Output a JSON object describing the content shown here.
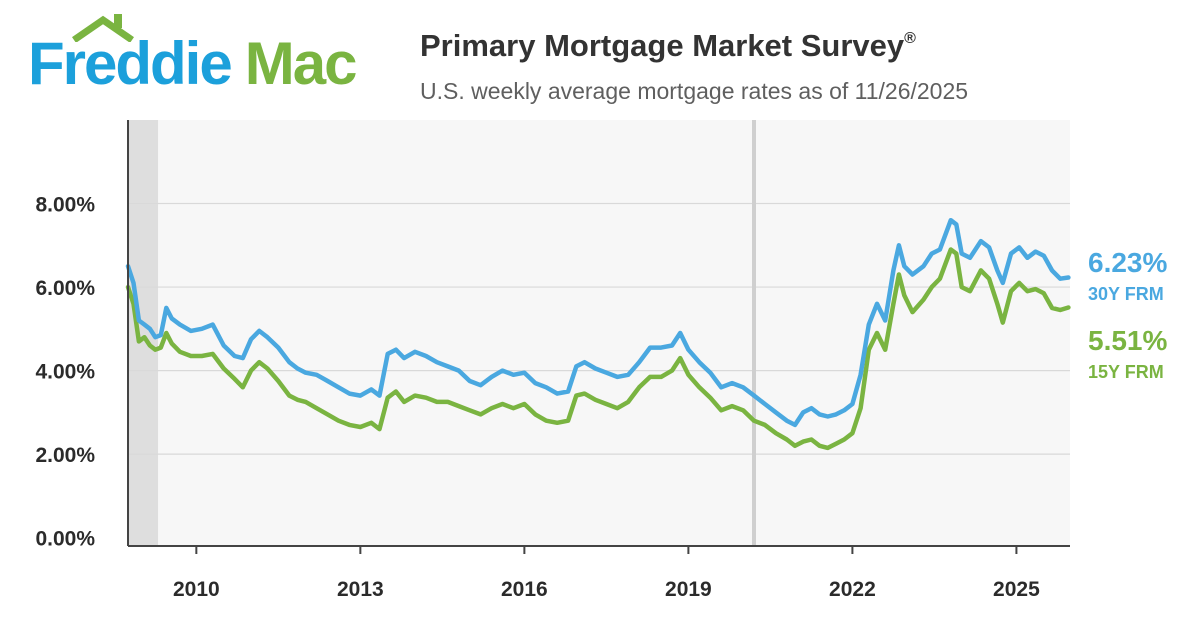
{
  "brand": {
    "name_part1": "Freddie",
    "name_part2": "Mac",
    "blue": "#1ca0db",
    "green": "#7ab441"
  },
  "header": {
    "title": "Primary Mortgage Market Survey",
    "title_mark": "®",
    "subtitle": "U.S. weekly average mortgage rates as of 11/26/2025"
  },
  "chart_data": {
    "type": "line",
    "title": "Primary Mortgage Market Survey®",
    "subtitle": "U.S. weekly average mortgage rates as of 11/26/2025",
    "xlim": [
      2008.75,
      2025.98
    ],
    "ylim": [
      -0.2,
      10.0
    ],
    "x_ticks": [
      2010,
      2013,
      2016,
      2019,
      2022,
      2025
    ],
    "x_tick_labels": [
      "2010",
      "2013",
      "2016",
      "2019",
      "2022",
      "2025"
    ],
    "y_ticks": [
      0,
      2,
      4,
      6,
      8
    ],
    "y_tick_labels": [
      "0.00%",
      "2.00%",
      "4.00%",
      "6.00%",
      "8.00%"
    ],
    "grid": "horizontal",
    "shaded_recession": [
      2008.75,
      2009.3
    ],
    "reference_line_x": 2020.2,
    "series": [
      {
        "name": "30Y FRM",
        "color": "#4aa8e0",
        "last_value": "6.23%",
        "points": [
          [
            2008.75,
            6.5
          ],
          [
            2008.85,
            6.1
          ],
          [
            2008.95,
            5.2
          ],
          [
            2009.05,
            5.1
          ],
          [
            2009.15,
            5.0
          ],
          [
            2009.25,
            4.8
          ],
          [
            2009.35,
            4.85
          ],
          [
            2009.45,
            5.5
          ],
          [
            2009.55,
            5.25
          ],
          [
            2009.7,
            5.1
          ],
          [
            2009.9,
            4.95
          ],
          [
            2010.1,
            5.0
          ],
          [
            2010.3,
            5.1
          ],
          [
            2010.5,
            4.6
          ],
          [
            2010.7,
            4.35
          ],
          [
            2010.85,
            4.3
          ],
          [
            2011.0,
            4.75
          ],
          [
            2011.15,
            4.95
          ],
          [
            2011.3,
            4.8
          ],
          [
            2011.5,
            4.55
          ],
          [
            2011.7,
            4.2
          ],
          [
            2011.85,
            4.05
          ],
          [
            2012.0,
            3.95
          ],
          [
            2012.2,
            3.9
          ],
          [
            2012.4,
            3.75
          ],
          [
            2012.6,
            3.6
          ],
          [
            2012.8,
            3.45
          ],
          [
            2013.0,
            3.4
          ],
          [
            2013.2,
            3.55
          ],
          [
            2013.35,
            3.4
          ],
          [
            2013.5,
            4.4
          ],
          [
            2013.65,
            4.5
          ],
          [
            2013.8,
            4.3
          ],
          [
            2014.0,
            4.45
          ],
          [
            2014.2,
            4.35
          ],
          [
            2014.4,
            4.2
          ],
          [
            2014.6,
            4.1
          ],
          [
            2014.8,
            4.0
          ],
          [
            2015.0,
            3.75
          ],
          [
            2015.2,
            3.65
          ],
          [
            2015.4,
            3.85
          ],
          [
            2015.6,
            4.0
          ],
          [
            2015.8,
            3.9
          ],
          [
            2016.0,
            3.95
          ],
          [
            2016.2,
            3.7
          ],
          [
            2016.4,
            3.6
          ],
          [
            2016.6,
            3.45
          ],
          [
            2016.8,
            3.5
          ],
          [
            2016.95,
            4.1
          ],
          [
            2017.1,
            4.2
          ],
          [
            2017.3,
            4.05
          ],
          [
            2017.5,
            3.95
          ],
          [
            2017.7,
            3.85
          ],
          [
            2017.9,
            3.9
          ],
          [
            2018.1,
            4.2
          ],
          [
            2018.3,
            4.55
          ],
          [
            2018.5,
            4.55
          ],
          [
            2018.7,
            4.6
          ],
          [
            2018.85,
            4.9
          ],
          [
            2019.0,
            4.5
          ],
          [
            2019.2,
            4.2
          ],
          [
            2019.4,
            3.95
          ],
          [
            2019.6,
            3.6
          ],
          [
            2019.8,
            3.7
          ],
          [
            2020.0,
            3.6
          ],
          [
            2020.2,
            3.4
          ],
          [
            2020.4,
            3.2
          ],
          [
            2020.6,
            3.0
          ],
          [
            2020.8,
            2.8
          ],
          [
            2020.95,
            2.7
          ],
          [
            2021.1,
            3.0
          ],
          [
            2021.25,
            3.1
          ],
          [
            2021.4,
            2.95
          ],
          [
            2021.55,
            2.9
          ],
          [
            2021.7,
            2.95
          ],
          [
            2021.85,
            3.05
          ],
          [
            2022.0,
            3.2
          ],
          [
            2022.15,
            3.9
          ],
          [
            2022.3,
            5.1
          ],
          [
            2022.45,
            5.6
          ],
          [
            2022.6,
            5.2
          ],
          [
            2022.75,
            6.4
          ],
          [
            2022.85,
            7.0
          ],
          [
            2022.95,
            6.5
          ],
          [
            2023.1,
            6.3
          ],
          [
            2023.3,
            6.5
          ],
          [
            2023.45,
            6.8
          ],
          [
            2023.6,
            6.9
          ],
          [
            2023.8,
            7.6
          ],
          [
            2023.9,
            7.5
          ],
          [
            2024.0,
            6.8
          ],
          [
            2024.15,
            6.7
          ],
          [
            2024.35,
            7.1
          ],
          [
            2024.5,
            6.95
          ],
          [
            2024.65,
            6.4
          ],
          [
            2024.75,
            6.1
          ],
          [
            2024.9,
            6.8
          ],
          [
            2025.05,
            6.95
          ],
          [
            2025.2,
            6.7
          ],
          [
            2025.35,
            6.85
          ],
          [
            2025.5,
            6.75
          ],
          [
            2025.65,
            6.4
          ],
          [
            2025.8,
            6.2
          ],
          [
            2025.95,
            6.23
          ]
        ]
      },
      {
        "name": "15Y FRM",
        "color": "#7ab441",
        "last_value": "5.51%",
        "points": [
          [
            2008.75,
            6.0
          ],
          [
            2008.85,
            5.6
          ],
          [
            2008.95,
            4.7
          ],
          [
            2009.05,
            4.8
          ],
          [
            2009.15,
            4.6
          ],
          [
            2009.25,
            4.5
          ],
          [
            2009.35,
            4.55
          ],
          [
            2009.45,
            4.9
          ],
          [
            2009.55,
            4.65
          ],
          [
            2009.7,
            4.45
          ],
          [
            2009.9,
            4.35
          ],
          [
            2010.1,
            4.35
          ],
          [
            2010.3,
            4.4
          ],
          [
            2010.5,
            4.05
          ],
          [
            2010.7,
            3.8
          ],
          [
            2010.85,
            3.6
          ],
          [
            2011.0,
            4.0
          ],
          [
            2011.15,
            4.2
          ],
          [
            2011.3,
            4.05
          ],
          [
            2011.5,
            3.75
          ],
          [
            2011.7,
            3.4
          ],
          [
            2011.85,
            3.3
          ],
          [
            2012.0,
            3.25
          ],
          [
            2012.2,
            3.1
          ],
          [
            2012.4,
            2.95
          ],
          [
            2012.6,
            2.8
          ],
          [
            2012.8,
            2.7
          ],
          [
            2013.0,
            2.65
          ],
          [
            2013.2,
            2.75
          ],
          [
            2013.35,
            2.6
          ],
          [
            2013.5,
            3.35
          ],
          [
            2013.65,
            3.5
          ],
          [
            2013.8,
            3.25
          ],
          [
            2014.0,
            3.4
          ],
          [
            2014.2,
            3.35
          ],
          [
            2014.4,
            3.25
          ],
          [
            2014.6,
            3.25
          ],
          [
            2014.8,
            3.15
          ],
          [
            2015.0,
            3.05
          ],
          [
            2015.2,
            2.95
          ],
          [
            2015.4,
            3.1
          ],
          [
            2015.6,
            3.2
          ],
          [
            2015.8,
            3.1
          ],
          [
            2016.0,
            3.2
          ],
          [
            2016.2,
            2.95
          ],
          [
            2016.4,
            2.8
          ],
          [
            2016.6,
            2.75
          ],
          [
            2016.8,
            2.8
          ],
          [
            2016.95,
            3.4
          ],
          [
            2017.1,
            3.45
          ],
          [
            2017.3,
            3.3
          ],
          [
            2017.5,
            3.2
          ],
          [
            2017.7,
            3.1
          ],
          [
            2017.9,
            3.25
          ],
          [
            2018.1,
            3.6
          ],
          [
            2018.3,
            3.85
          ],
          [
            2018.5,
            3.85
          ],
          [
            2018.7,
            4.0
          ],
          [
            2018.85,
            4.3
          ],
          [
            2019.0,
            3.9
          ],
          [
            2019.2,
            3.6
          ],
          [
            2019.4,
            3.35
          ],
          [
            2019.6,
            3.05
          ],
          [
            2019.8,
            3.15
          ],
          [
            2020.0,
            3.05
          ],
          [
            2020.2,
            2.8
          ],
          [
            2020.4,
            2.7
          ],
          [
            2020.6,
            2.5
          ],
          [
            2020.8,
            2.35
          ],
          [
            2020.95,
            2.2
          ],
          [
            2021.1,
            2.3
          ],
          [
            2021.25,
            2.35
          ],
          [
            2021.4,
            2.2
          ],
          [
            2021.55,
            2.15
          ],
          [
            2021.7,
            2.25
          ],
          [
            2021.85,
            2.35
          ],
          [
            2022.0,
            2.5
          ],
          [
            2022.15,
            3.1
          ],
          [
            2022.3,
            4.5
          ],
          [
            2022.45,
            4.9
          ],
          [
            2022.6,
            4.5
          ],
          [
            2022.75,
            5.6
          ],
          [
            2022.85,
            6.3
          ],
          [
            2022.95,
            5.8
          ],
          [
            2023.1,
            5.4
          ],
          [
            2023.3,
            5.7
          ],
          [
            2023.45,
            6.0
          ],
          [
            2023.6,
            6.2
          ],
          [
            2023.8,
            6.9
          ],
          [
            2023.9,
            6.8
          ],
          [
            2024.0,
            6.0
          ],
          [
            2024.15,
            5.9
          ],
          [
            2024.35,
            6.4
          ],
          [
            2024.5,
            6.2
          ],
          [
            2024.65,
            5.6
          ],
          [
            2024.75,
            5.15
          ],
          [
            2024.9,
            5.9
          ],
          [
            2025.05,
            6.1
          ],
          [
            2025.2,
            5.9
          ],
          [
            2025.35,
            5.95
          ],
          [
            2025.5,
            5.85
          ],
          [
            2025.65,
            5.5
          ],
          [
            2025.8,
            5.45
          ],
          [
            2025.95,
            5.51
          ]
        ]
      }
    ]
  }
}
